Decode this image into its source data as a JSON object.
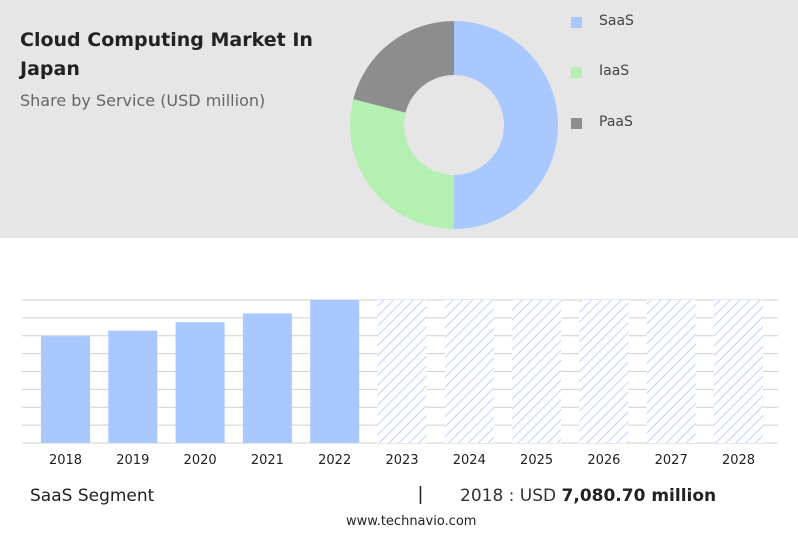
{
  "header": {
    "title": "Cloud Computing Market In Japan",
    "subtitle": "Share by Service (USD million)"
  },
  "colors": {
    "saas": "#a8c8ff",
    "iaas": "#b5f0b3",
    "paas": "#8d8d8d",
    "forecast_hatch": "#a8c8ff",
    "grid": "#cfcfcf"
  },
  "chart_data": [
    {
      "type": "pie",
      "variant": "donut",
      "legend_position": "right",
      "series": [
        {
          "name": "SaaS",
          "value": 50
        },
        {
          "name": "IaaS",
          "value": 29
        },
        {
          "name": "PaaS",
          "value": 21
        }
      ]
    },
    {
      "type": "bar",
      "title": "",
      "xlabel": "",
      "ylabel": "",
      "grid": true,
      "categories": [
        "2018",
        "2019",
        "2020",
        "2021",
        "2022",
        "2023",
        "2024",
        "2025",
        "2026",
        "2027",
        "2028"
      ],
      "values": [
        7080.7,
        7450,
        8010,
        8590,
        9480,
        null,
        null,
        null,
        null,
        null,
        null
      ],
      "forecast_categories": [
        "2023",
        "2024",
        "2025",
        "2026",
        "2027",
        "2028"
      ],
      "ylim": [
        0,
        9480
      ]
    }
  ],
  "legend": {
    "items": [
      {
        "label": "SaaS"
      },
      {
        "label": "IaaS"
      },
      {
        "label": "PaaS"
      }
    ]
  },
  "footer": {
    "segment_label": "SaaS Segment",
    "separator": "|",
    "value_prefix": "2018 : USD ",
    "value_bold": "7,080.70 million",
    "source": "www.technavio.com"
  }
}
